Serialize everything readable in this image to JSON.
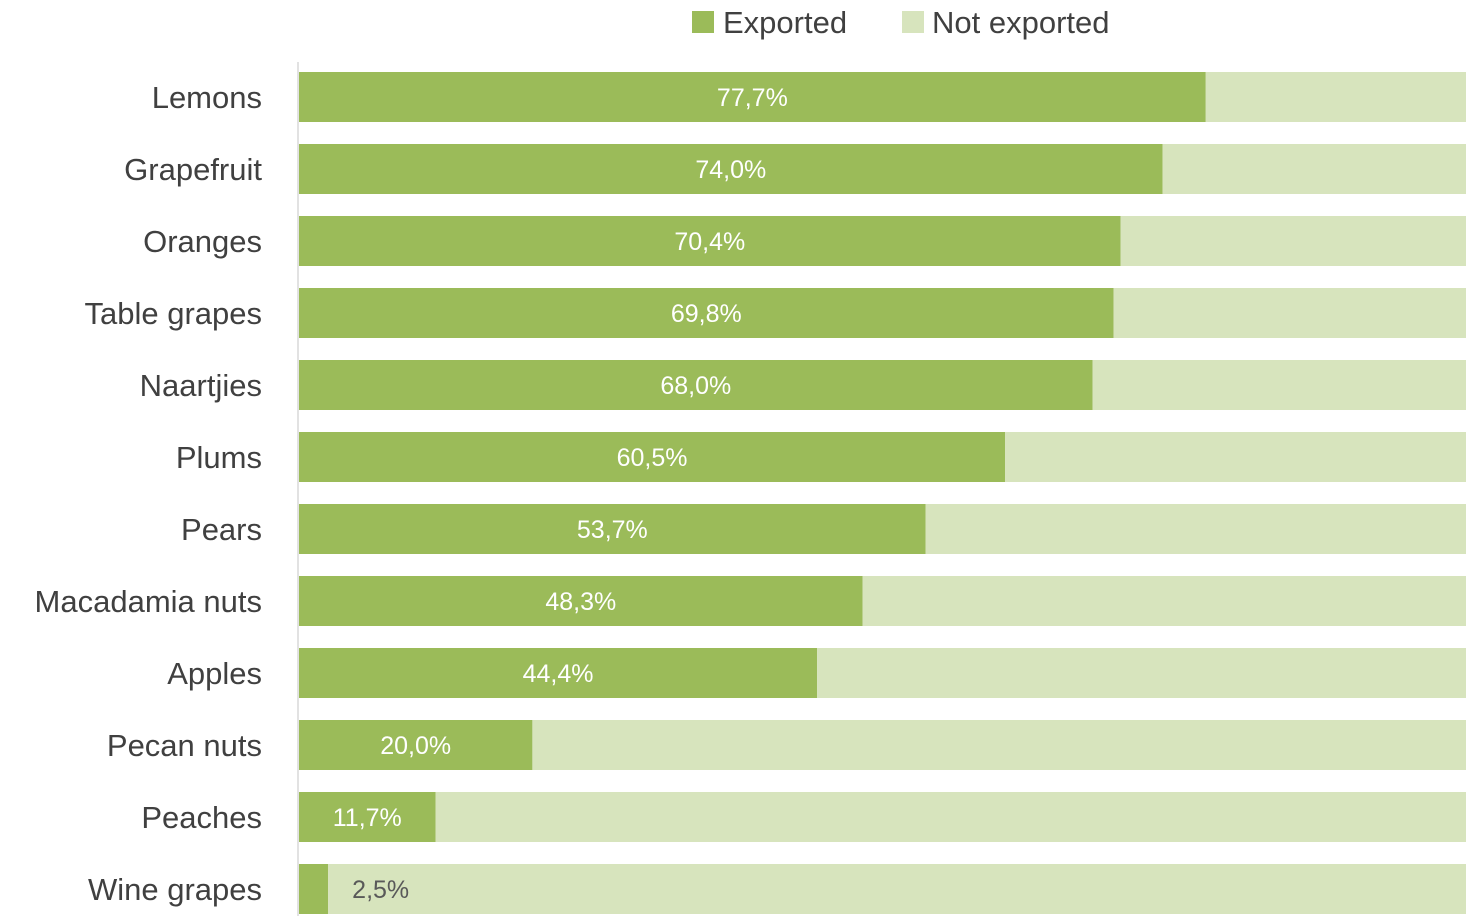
{
  "chart_data": {
    "type": "bar",
    "orientation": "horizontal",
    "stacked": true,
    "normalized_to_percent": true,
    "categories": [
      "Lemons",
      "Grapefruit",
      "Oranges",
      "Table grapes",
      "Naartjies",
      "Plums",
      "Pears",
      "Macadamia nuts",
      "Apples",
      "Pecan nuts",
      "Peaches",
      "Wine grapes"
    ],
    "series": [
      {
        "name": "Exported",
        "color": "#9bbb59",
        "values": [
          77.7,
          74.0,
          70.4,
          69.8,
          68.0,
          60.5,
          53.7,
          48.3,
          44.4,
          20.0,
          11.7,
          2.5
        ],
        "labels": [
          "77,7%",
          "74,0%",
          "70,4%",
          "69,8%",
          "68,0%",
          "60,5%",
          "53,7%",
          "48,3%",
          "44,4%",
          "20,0%",
          "11,7%",
          "2,5%"
        ]
      },
      {
        "name": "Not exported",
        "color": "#d7e4bd",
        "values": [
          22.3,
          26.0,
          29.6,
          30.2,
          32.0,
          39.5,
          46.3,
          51.7,
          55.6,
          80.0,
          88.3,
          97.5
        ]
      }
    ],
    "xlim": [
      0,
      100
    ],
    "title": "",
    "xlabel": "",
    "ylabel": "",
    "legend_position": "top",
    "grid": false,
    "label_color_inside": "#ffffff",
    "label_color_outside": "#595959",
    "category_label_color": "#404040"
  }
}
